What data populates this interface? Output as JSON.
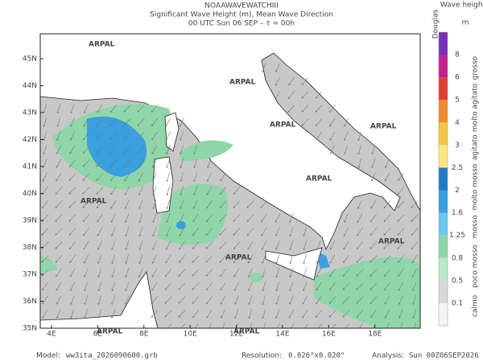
{
  "header": {
    "title": "NOAAWAVEWATCHIII",
    "subtitle": "Significant Wave Height (m), Mean Wave Direction",
    "time": "00 UTC Sun 06 SEP  –  τ = 00h"
  },
  "map": {
    "lat_labels": [
      "35N",
      "36N",
      "37N",
      "38N",
      "39N",
      "40N",
      "41N",
      "42N",
      "43N",
      "44N",
      "45N"
    ],
    "lon_labels": [
      "4E",
      "6E",
      "8E",
      "10E",
      "12E",
      "14E",
      "16E",
      "18E"
    ],
    "watermark": "ARPAL"
  },
  "legend": {
    "title": "Wave height",
    "unit": "m",
    "scale": "Douglas",
    "levels": [
      "0.1",
      "0.5",
      "0.8",
      "1.25",
      "1.6",
      "2",
      "2.5",
      "3",
      "4",
      "5",
      "6",
      "8"
    ],
    "classes": [
      "calmo",
      "poco mosso",
      "mosso",
      "molto mosso",
      "agitato",
      "molto agitato",
      "grosso"
    ]
  },
  "footer": {
    "model_label": "Model:",
    "model": "ww3ita_2026090600.grb",
    "resolution_label": "Resolution:",
    "resolution": "0.026°x0.020°",
    "analysis_label": "Analysis:",
    "analysis": "Sun 00Z06SEP2026"
  }
}
